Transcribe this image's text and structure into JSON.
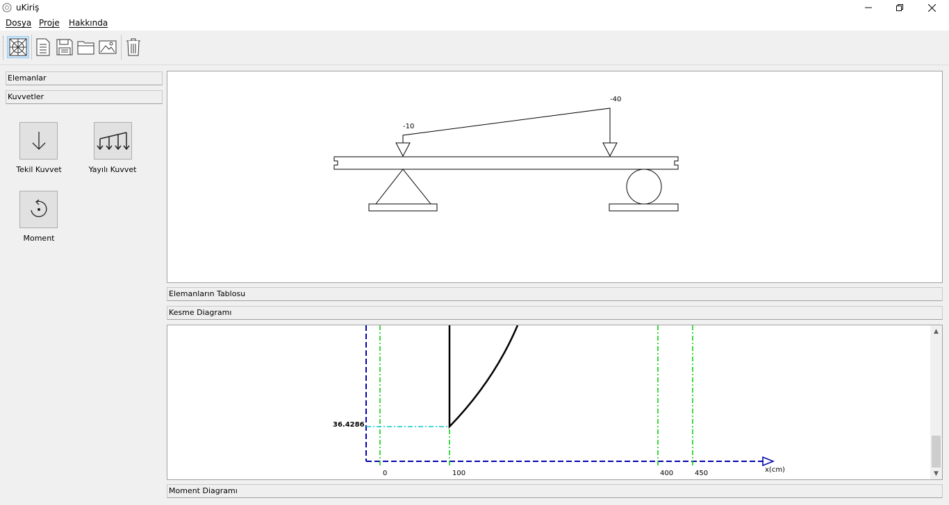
{
  "window": {
    "title": "uKiriş"
  },
  "menu": {
    "file": "Dosya",
    "project": "Proje",
    "about": "Hakkında"
  },
  "toolbar": {
    "buttons": [
      {
        "icon": "beam-view-icon",
        "active": true
      },
      {
        "icon": "new-document-icon"
      },
      {
        "icon": "save-icon"
      },
      {
        "icon": "open-folder-icon"
      },
      {
        "icon": "image-export-icon"
      },
      {
        "icon": "trash-icon"
      }
    ]
  },
  "sidebar": {
    "elements_header": "Elemanlar",
    "forces_header": "Kuvvetler",
    "tools": [
      {
        "label": "Tekil Kuvvet",
        "icon": "point-load-arrow-icon"
      },
      {
        "label": "Yayılı Kuvvet",
        "icon": "distributed-load-icon"
      },
      {
        "label": "Moment",
        "icon": "moment-rotation-icon"
      }
    ]
  },
  "beam_view": {
    "load_start": "-10",
    "load_end": "-40"
  },
  "sections": {
    "elements_table": "Elemanların Tablosu",
    "shear_diagram": "Kesme Diagramı",
    "moment_diagram": "Moment Diagramı"
  },
  "shear_chart": {
    "value_label": "36.4286",
    "x_ticks": [
      "0",
      "100",
      "400",
      "450"
    ],
    "x_axis_label": "x(cm)"
  }
}
